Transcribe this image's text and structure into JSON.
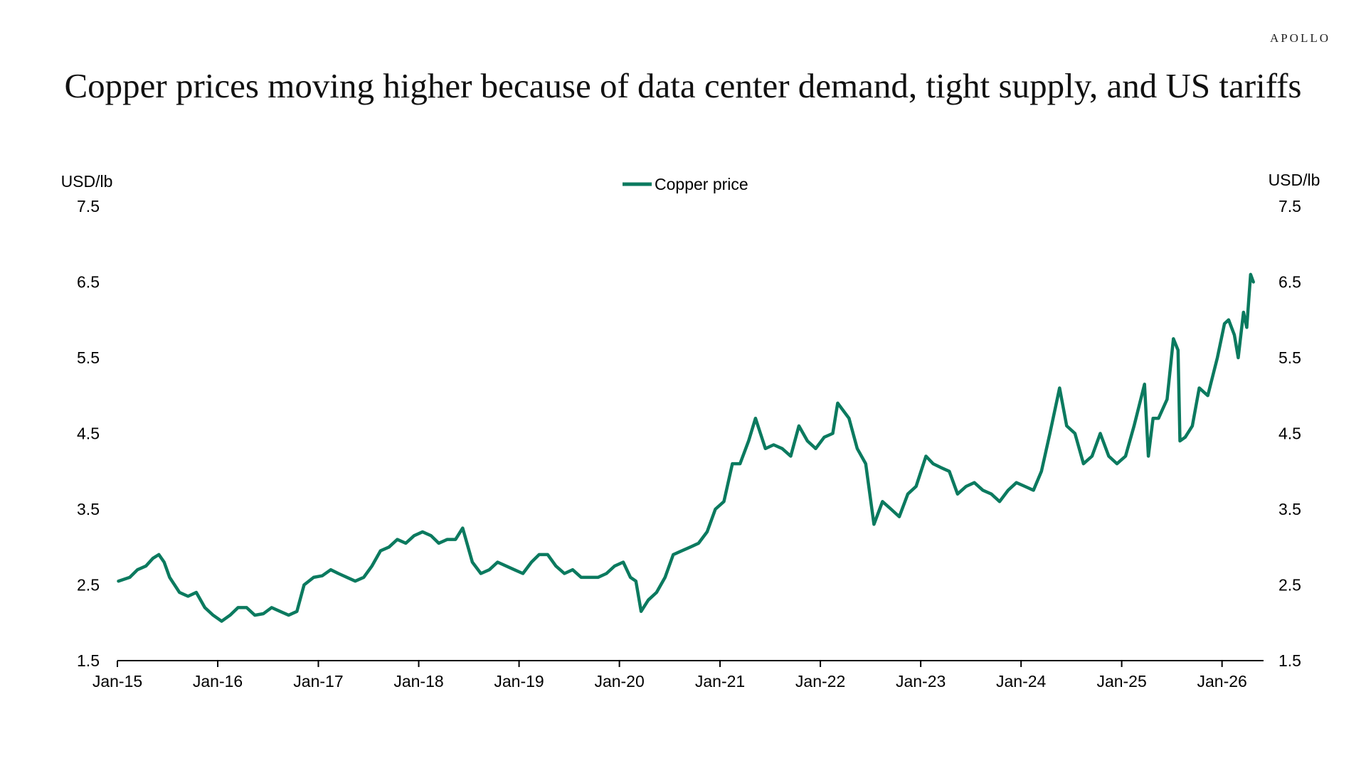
{
  "brand": "APOLLO",
  "title": "Copper prices moving higher because of  data center demand, tight supply, and US tariffs",
  "colors": {
    "series": "#0b7a5f",
    "axis": "#000000"
  },
  "chart_data": {
    "type": "line",
    "title": "Copper prices moving higher because of  data center demand, tight supply, and US tariffs",
    "y_left_label": "USD/lb",
    "y_right_label": "USD/lb",
    "ylim": [
      1.5,
      7.5
    ],
    "yticks": [
      1.5,
      2.5,
      3.5,
      4.5,
      5.5,
      6.5,
      7.5
    ],
    "ytick_labels": [
      "1.5",
      "2.5",
      "3.5",
      "4.5",
      "5.5",
      "6.5",
      "7.5"
    ],
    "xlim": [
      "2015-01",
      "2026-06"
    ],
    "xticks": [
      "2015-01",
      "2016-01",
      "2017-01",
      "2018-01",
      "2019-01",
      "2020-01",
      "2021-01",
      "2022-01",
      "2023-01",
      "2024-01",
      "2025-01",
      "2026-01"
    ],
    "xtick_labels": [
      "Jan-15",
      "Jan-16",
      "Jan-17",
      "Jan-18",
      "Jan-19",
      "Jan-20",
      "Jan-21",
      "Jan-22",
      "Jan-23",
      "Jan-24",
      "Jan-25",
      "Jan-26"
    ],
    "grid": false,
    "legend": {
      "position": "top-center",
      "entries": [
        "Copper price"
      ]
    },
    "series": [
      {
        "name": "Copper price",
        "points": [
          [
            "2015-01-05",
            2.55
          ],
          [
            "2015-02-15",
            2.6
          ],
          [
            "2015-03-15",
            2.7
          ],
          [
            "2015-04-15",
            2.75
          ],
          [
            "2015-05-10",
            2.85
          ],
          [
            "2015-06-01",
            2.9
          ],
          [
            "2015-06-20",
            2.8
          ],
          [
            "2015-07-10",
            2.6
          ],
          [
            "2015-08-15",
            2.4
          ],
          [
            "2015-09-15",
            2.35
          ],
          [
            "2015-10-15",
            2.4
          ],
          [
            "2015-11-15",
            2.2
          ],
          [
            "2015-12-15",
            2.1
          ],
          [
            "2016-01-15",
            2.02
          ],
          [
            "2016-02-15",
            2.1
          ],
          [
            "2016-03-15",
            2.2
          ],
          [
            "2016-04-15",
            2.2
          ],
          [
            "2016-05-15",
            2.1
          ],
          [
            "2016-06-15",
            2.12
          ],
          [
            "2016-07-15",
            2.2
          ],
          [
            "2016-08-15",
            2.15
          ],
          [
            "2016-09-15",
            2.1
          ],
          [
            "2016-10-15",
            2.15
          ],
          [
            "2016-11-10",
            2.5
          ],
          [
            "2016-12-15",
            2.6
          ],
          [
            "2017-01-15",
            2.62
          ],
          [
            "2017-02-15",
            2.7
          ],
          [
            "2017-03-15",
            2.65
          ],
          [
            "2017-04-15",
            2.6
          ],
          [
            "2017-05-15",
            2.55
          ],
          [
            "2017-06-15",
            2.6
          ],
          [
            "2017-07-15",
            2.75
          ],
          [
            "2017-08-15",
            2.95
          ],
          [
            "2017-09-15",
            3.0
          ],
          [
            "2017-10-15",
            3.1
          ],
          [
            "2017-11-15",
            3.05
          ],
          [
            "2017-12-15",
            3.15
          ],
          [
            "2018-01-15",
            3.2
          ],
          [
            "2018-02-15",
            3.15
          ],
          [
            "2018-03-15",
            3.05
          ],
          [
            "2018-04-15",
            3.1
          ],
          [
            "2018-05-15",
            3.1
          ],
          [
            "2018-06-10",
            3.25
          ],
          [
            "2018-07-15",
            2.8
          ],
          [
            "2018-08-15",
            2.65
          ],
          [
            "2018-09-15",
            2.7
          ],
          [
            "2018-10-15",
            2.8
          ],
          [
            "2018-11-15",
            2.75
          ],
          [
            "2018-12-15",
            2.7
          ],
          [
            "2019-01-15",
            2.65
          ],
          [
            "2019-02-15",
            2.8
          ],
          [
            "2019-03-15",
            2.9
          ],
          [
            "2019-04-15",
            2.9
          ],
          [
            "2019-05-15",
            2.75
          ],
          [
            "2019-06-15",
            2.65
          ],
          [
            "2019-07-15",
            2.7
          ],
          [
            "2019-08-15",
            2.6
          ],
          [
            "2019-09-15",
            2.6
          ],
          [
            "2019-10-15",
            2.6
          ],
          [
            "2019-11-15",
            2.65
          ],
          [
            "2019-12-15",
            2.75
          ],
          [
            "2020-01-15",
            2.8
          ],
          [
            "2020-02-10",
            2.6
          ],
          [
            "2020-03-01",
            2.55
          ],
          [
            "2020-03-20",
            2.15
          ],
          [
            "2020-04-15",
            2.3
          ],
          [
            "2020-05-15",
            2.4
          ],
          [
            "2020-06-15",
            2.6
          ],
          [
            "2020-07-15",
            2.9
          ],
          [
            "2020-08-15",
            2.95
          ],
          [
            "2020-09-15",
            3.0
          ],
          [
            "2020-10-15",
            3.05
          ],
          [
            "2020-11-15",
            3.2
          ],
          [
            "2020-12-15",
            3.5
          ],
          [
            "2021-01-15",
            3.6
          ],
          [
            "2021-02-15",
            4.1
          ],
          [
            "2021-03-15",
            4.1
          ],
          [
            "2021-04-15",
            4.4
          ],
          [
            "2021-05-10",
            4.7
          ],
          [
            "2021-06-15",
            4.3
          ],
          [
            "2021-07-15",
            4.35
          ],
          [
            "2021-08-15",
            4.3
          ],
          [
            "2021-09-15",
            4.2
          ],
          [
            "2021-10-15",
            4.6
          ],
          [
            "2021-11-15",
            4.4
          ],
          [
            "2021-12-15",
            4.3
          ],
          [
            "2022-01-15",
            4.45
          ],
          [
            "2022-02-15",
            4.5
          ],
          [
            "2022-03-05",
            4.9
          ],
          [
            "2022-04-15",
            4.7
          ],
          [
            "2022-05-15",
            4.3
          ],
          [
            "2022-06-15",
            4.1
          ],
          [
            "2022-07-15",
            3.3
          ],
          [
            "2022-08-15",
            3.6
          ],
          [
            "2022-09-15",
            3.5
          ],
          [
            "2022-10-15",
            3.4
          ],
          [
            "2022-11-15",
            3.7
          ],
          [
            "2022-12-15",
            3.8
          ],
          [
            "2023-01-20",
            4.2
          ],
          [
            "2023-02-15",
            4.1
          ],
          [
            "2023-03-15",
            4.05
          ],
          [
            "2023-04-15",
            4.0
          ],
          [
            "2023-05-15",
            3.7
          ],
          [
            "2023-06-15",
            3.8
          ],
          [
            "2023-07-15",
            3.85
          ],
          [
            "2023-08-15",
            3.75
          ],
          [
            "2023-09-15",
            3.7
          ],
          [
            "2023-10-15",
            3.6
          ],
          [
            "2023-11-15",
            3.75
          ],
          [
            "2023-12-15",
            3.85
          ],
          [
            "2024-01-15",
            3.8
          ],
          [
            "2024-02-15",
            3.75
          ],
          [
            "2024-03-15",
            4.0
          ],
          [
            "2024-04-15",
            4.5
          ],
          [
            "2024-05-20",
            5.1
          ],
          [
            "2024-06-15",
            4.6
          ],
          [
            "2024-07-15",
            4.5
          ],
          [
            "2024-08-15",
            4.1
          ],
          [
            "2024-09-15",
            4.2
          ],
          [
            "2024-10-15",
            4.5
          ],
          [
            "2024-11-15",
            4.2
          ],
          [
            "2024-12-15",
            4.1
          ],
          [
            "2025-01-15",
            4.2
          ],
          [
            "2025-02-15",
            4.6
          ],
          [
            "2025-03-25",
            5.15
          ],
          [
            "2025-04-08",
            4.2
          ],
          [
            "2025-04-25",
            4.7
          ],
          [
            "2025-05-15",
            4.7
          ],
          [
            "2025-06-15",
            4.95
          ],
          [
            "2025-07-08",
            5.75
          ],
          [
            "2025-07-25",
            5.6
          ],
          [
            "2025-08-01",
            4.4
          ],
          [
            "2025-08-20",
            4.45
          ],
          [
            "2025-09-15",
            4.6
          ],
          [
            "2025-10-10",
            5.1
          ],
          [
            "2025-11-10",
            5.0
          ],
          [
            "2025-12-15",
            5.5
          ],
          [
            "2026-01-10",
            5.95
          ],
          [
            "2026-01-25",
            6.0
          ],
          [
            "2026-02-15",
            5.8
          ],
          [
            "2026-03-01",
            5.5
          ],
          [
            "2026-03-20",
            6.1
          ],
          [
            "2026-04-01",
            5.9
          ],
          [
            "2026-04-15",
            6.6
          ],
          [
            "2026-04-25",
            6.5
          ]
        ]
      }
    ]
  }
}
